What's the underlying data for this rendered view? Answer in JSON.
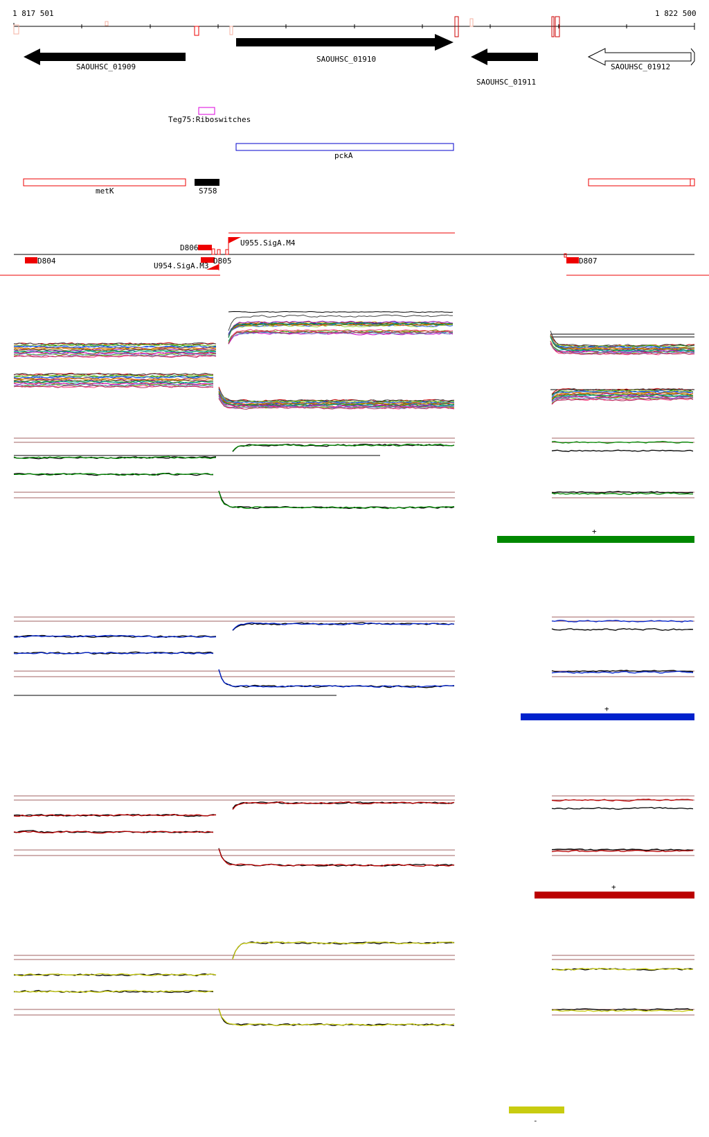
{
  "coords": {
    "start": "1 817 501",
    "end": "1 822 500"
  },
  "genes": {
    "g1909": "SAOUHSC_01909",
    "g1910": "SAOUHSC_01910",
    "g1911": "SAOUHSC_01911",
    "g1912": "SAOUHSC_01912"
  },
  "features": {
    "teg75": "Teg75:Riboswitches",
    "pcka": "pckA",
    "metk": "metK",
    "s758": "S758"
  },
  "segments": {
    "d806": "D806",
    "u955": "U955.SigA.M4",
    "d804": "D804",
    "d805": "D805",
    "u954": "U954.SigA.M3",
    "d807": "D807"
  },
  "tracks": [
    {
      "color": "#008800",
      "strand": "+"
    },
    {
      "color": "#0022cc",
      "strand": "+"
    },
    {
      "color": "#bb0000",
      "strand": "+"
    },
    {
      "color": "#c8cc10",
      "strand": "-"
    }
  ],
  "colors": {
    "annotation_red": "#ee0000",
    "riboswitch": "#dd00dd",
    "operon_blue": "#0000cc"
  }
}
